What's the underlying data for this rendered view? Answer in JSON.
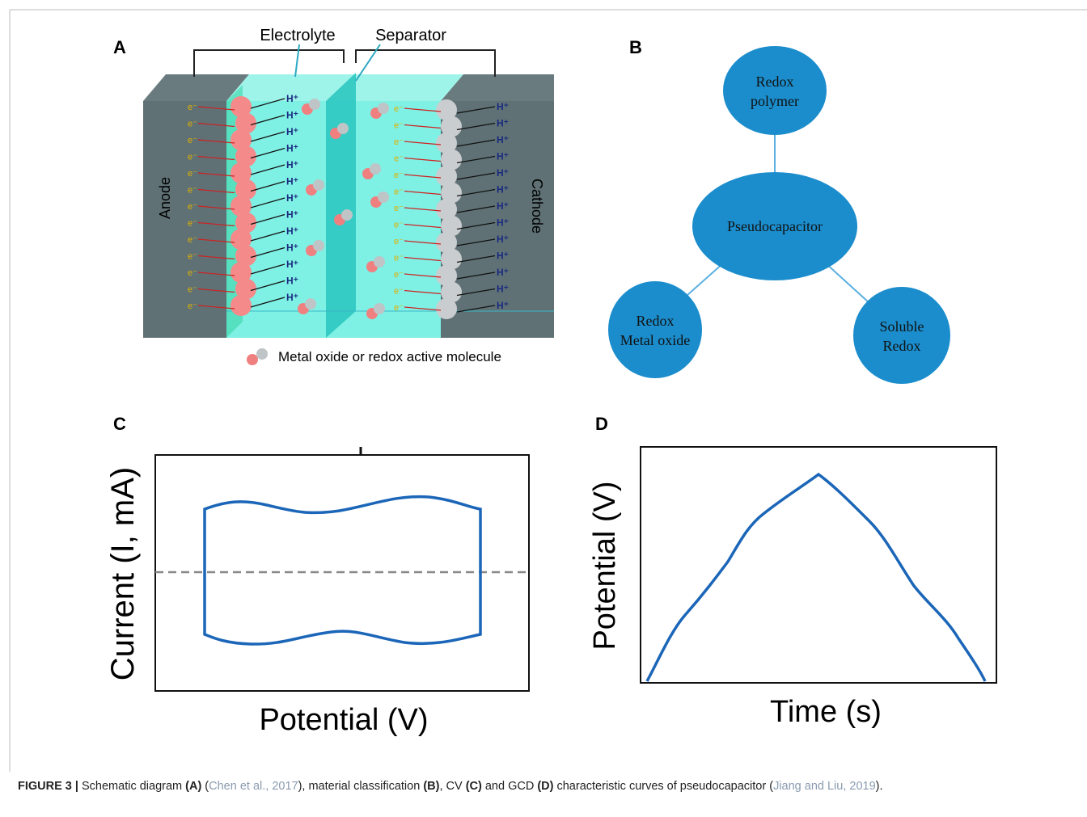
{
  "panels": {
    "a": {
      "label": "A",
      "electrolyte": "Electrolyte",
      "separator": "Separator",
      "anode": "Anode",
      "cathode": "Cathode",
      "electron": "e⁻",
      "proton": "H⁺",
      "legend": "Metal oxide or redox active molecule"
    },
    "b": {
      "label": "B",
      "nodes": [
        {
          "label": "Redox polymer"
        },
        {
          "label": "Pseudocapacitor"
        },
        {
          "label": "Redox Metal oxide"
        },
        {
          "label": "Soluble Redox"
        }
      ]
    },
    "c": {
      "label": "C",
      "y_label": "Current (I, mA)",
      "x_label": "Potential (V)"
    },
    "d": {
      "label": "D",
      "y_label": "Potential (V)",
      "x_label": "Time (s)"
    }
  },
  "caption": {
    "figure": "FIGURE 3 |",
    "parts": [
      {
        "text": " Schematic diagram ",
        "style": "plain"
      },
      {
        "text": "(A)",
        "style": "bold"
      },
      {
        "text": " (",
        "style": "plain"
      },
      {
        "text": "Chen et al., 2017",
        "style": "ref"
      },
      {
        "text": "), material classification ",
        "style": "plain"
      },
      {
        "text": "(B)",
        "style": "bold"
      },
      {
        "text": ", CV ",
        "style": "plain"
      },
      {
        "text": "(C)",
        "style": "bold"
      },
      {
        "text": " and GCD ",
        "style": "plain"
      },
      {
        "text": "(D)",
        "style": "bold"
      },
      {
        "text": " characteristic curves of pseudocapacitor (",
        "style": "plain"
      },
      {
        "text": "Jiang and Liu, 2019",
        "style": "ref"
      },
      {
        "text": ").",
        "style": "plain"
      }
    ]
  }
}
